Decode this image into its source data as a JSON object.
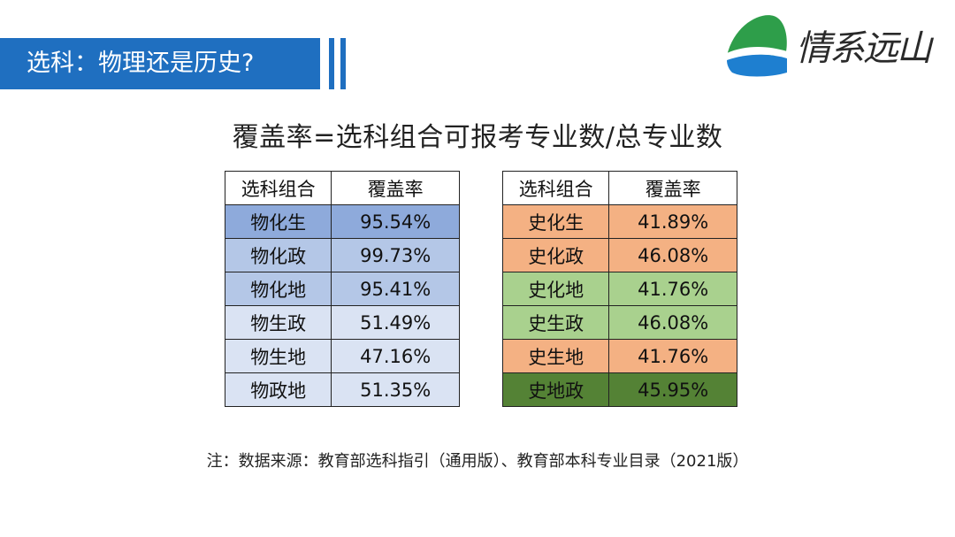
{
  "header": {
    "title": "选科：物理还是历史?"
  },
  "logo": {
    "text": "情系远山"
  },
  "formula": "覆盖率=选科组合可报考专业数/总专业数",
  "physics_table": {
    "headers": [
      "选科组合",
      "覆盖率"
    ],
    "rows": [
      {
        "combo": "物化生",
        "rate": "95.54%",
        "color": "#8eaadb"
      },
      {
        "combo": "物化政",
        "rate": "99.73%",
        "color": "#b4c7e7"
      },
      {
        "combo": "物化地",
        "rate": "95.41%",
        "color": "#b4c7e7"
      },
      {
        "combo": "物生政",
        "rate": "51.49%",
        "color": "#dae3f3"
      },
      {
        "combo": "物生地",
        "rate": "47.16%",
        "color": "#dae3f3"
      },
      {
        "combo": "物政地",
        "rate": "51.35%",
        "color": "#dae3f3"
      }
    ]
  },
  "history_table": {
    "headers": [
      "选科组合",
      "覆盖率"
    ],
    "rows": [
      {
        "combo": "史化生",
        "rate": "41.89%",
        "color": "#f4b183"
      },
      {
        "combo": "史化政",
        "rate": "46.08%",
        "color": "#f4b183"
      },
      {
        "combo": "史化地",
        "rate": "41.76%",
        "color": "#a9d18e"
      },
      {
        "combo": "史生政",
        "rate": "46.08%",
        "color": "#a9d18e"
      },
      {
        "combo": "史生地",
        "rate": "41.76%",
        "color": "#f4b183"
      },
      {
        "combo": "史地政",
        "rate": "45.95%",
        "color": "#548235"
      }
    ]
  },
  "note": "注：数据来源：教育部选科指引（通用版）、教育部本科专业目录（2021版）"
}
